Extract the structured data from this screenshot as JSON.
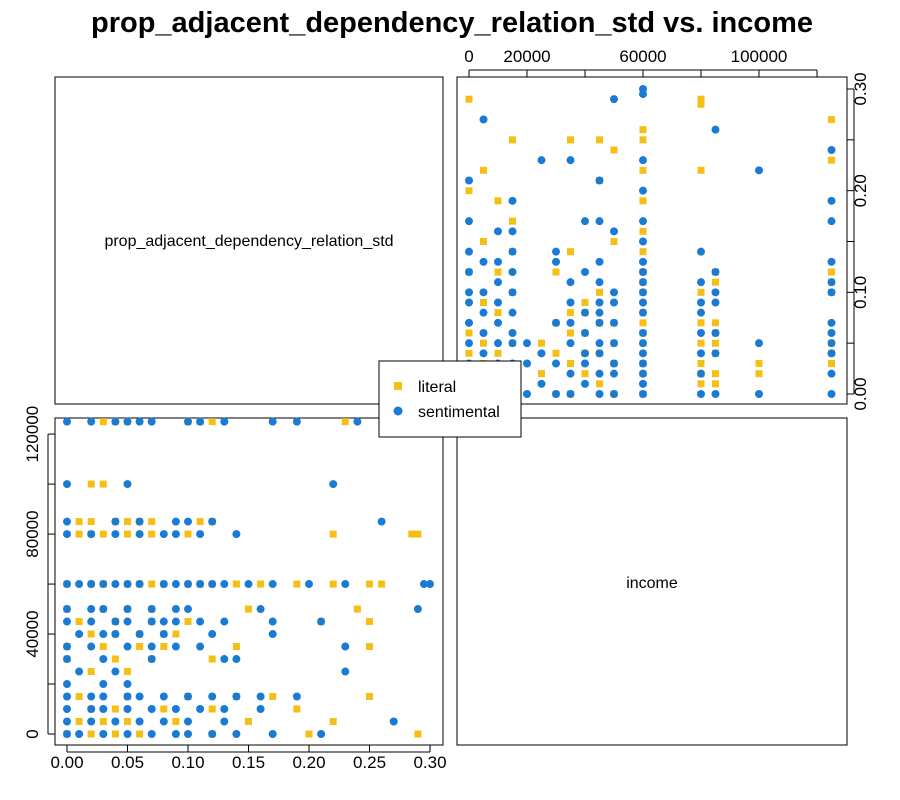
{
  "title": "prop_adjacent_dependency_relation_std vs. income",
  "diagonal_labels": {
    "prop": "prop_adjacent_dependency_relation_std",
    "income": "income"
  },
  "legend": [
    {
      "label": "literal",
      "color": "#F5BF16",
      "shape": "square"
    },
    {
      "label": "sentimental",
      "color": "#1A7BD4",
      "shape": "circle"
    }
  ],
  "chart_data": {
    "type": "scatter",
    "title": "prop_adjacent_dependency_relation_std vs. income",
    "variables": [
      "prop_adjacent_dependency_relation_std",
      "income"
    ],
    "layout": "scatterplot matrix (2x2)",
    "prop_axis": {
      "range": [
        0,
        0.3
      ],
      "ticks": [
        "0.00",
        "0.05",
        "0.10",
        "0.15",
        "0.20",
        "0.25",
        "0.30"
      ],
      "tick_values": [
        0,
        0.05,
        0.1,
        0.15,
        0.2,
        0.25,
        0.3
      ]
    },
    "income_axis_left": {
      "range": [
        0,
        125000
      ],
      "ticks": [
        "0",
        "40000",
        "80000",
        "120000"
      ],
      "tick_values": [
        0,
        40000,
        80000,
        120000
      ],
      "minor_ticks": [
        20000,
        60000,
        100000
      ]
    },
    "income_axis_top": {
      "range": [
        0,
        125000
      ],
      "ticks": [
        "0",
        "20000",
        "60000",
        "100000"
      ],
      "tick_values": [
        0,
        20000,
        60000,
        100000
      ],
      "minor_ticks": [
        40000,
        80000,
        120000
      ]
    },
    "series": [
      {
        "name": "literal",
        "points": [
          [
            0.0,
            0
          ],
          [
            0.02,
            0
          ],
          [
            0.04,
            0
          ],
          [
            0.06,
            0
          ],
          [
            0.12,
            0
          ],
          [
            0.2,
            0
          ],
          [
            0.29,
            0
          ],
          [
            0.01,
            5000
          ],
          [
            0.03,
            5000
          ],
          [
            0.05,
            5000
          ],
          [
            0.09,
            5000
          ],
          [
            0.15,
            5000
          ],
          [
            0.22,
            5000
          ],
          [
            0.02,
            10000
          ],
          [
            0.04,
            10000
          ],
          [
            0.08,
            10000
          ],
          [
            0.12,
            10000
          ],
          [
            0.19,
            10000
          ],
          [
            0.01,
            15000
          ],
          [
            0.05,
            15000
          ],
          [
            0.1,
            15000
          ],
          [
            0.14,
            15000
          ],
          [
            0.17,
            15000
          ],
          [
            0.25,
            15000
          ],
          [
            0.02,
            25000
          ],
          [
            0.05,
            25000
          ],
          [
            0.0,
            30000
          ],
          [
            0.04,
            30000
          ],
          [
            0.07,
            30000
          ],
          [
            0.12,
            30000
          ],
          [
            0.0,
            35000
          ],
          [
            0.03,
            35000
          ],
          [
            0.06,
            35000
          ],
          [
            0.08,
            35000
          ],
          [
            0.14,
            35000
          ],
          [
            0.25,
            35000
          ],
          [
            0.02,
            40000
          ],
          [
            0.04,
            40000
          ],
          [
            0.06,
            40000
          ],
          [
            0.08,
            40000
          ],
          [
            0.09,
            40000
          ],
          [
            0.01,
            45000
          ],
          [
            0.04,
            45000
          ],
          [
            0.07,
            45000
          ],
          [
            0.1,
            45000
          ],
          [
            0.21,
            45000
          ],
          [
            0.25,
            45000
          ],
          [
            0.0,
            50000
          ],
          [
            0.03,
            50000
          ],
          [
            0.05,
            50000
          ],
          [
            0.07,
            50000
          ],
          [
            0.15,
            50000
          ],
          [
            0.24,
            50000
          ],
          [
            0.0,
            60000
          ],
          [
            0.02,
            60000
          ],
          [
            0.03,
            60000
          ],
          [
            0.05,
            60000
          ],
          [
            0.06,
            60000
          ],
          [
            0.07,
            60000
          ],
          [
            0.08,
            60000
          ],
          [
            0.1,
            60000
          ],
          [
            0.11,
            60000
          ],
          [
            0.12,
            60000
          ],
          [
            0.14,
            60000
          ],
          [
            0.16,
            60000
          ],
          [
            0.19,
            60000
          ],
          [
            0.22,
            60000
          ],
          [
            0.25,
            60000
          ],
          [
            0.26,
            60000
          ],
          [
            0.01,
            80000
          ],
          [
            0.02,
            80000
          ],
          [
            0.03,
            80000
          ],
          [
            0.05,
            80000
          ],
          [
            0.07,
            80000
          ],
          [
            0.1,
            80000
          ],
          [
            0.22,
            80000
          ],
          [
            0.285,
            80000
          ],
          [
            0.29,
            80000
          ],
          [
            0.01,
            85000
          ],
          [
            0.02,
            85000
          ],
          [
            0.04,
            85000
          ],
          [
            0.05,
            85000
          ],
          [
            0.06,
            85000
          ],
          [
            0.07,
            85000
          ],
          [
            0.11,
            85000
          ],
          [
            0.12,
            85000
          ],
          [
            0.02,
            100000
          ],
          [
            0.03,
            100000
          ],
          [
            0.03,
            125000
          ],
          [
            0.04,
            125000
          ],
          [
            0.05,
            125000
          ],
          [
            0.1,
            125000
          ],
          [
            0.11,
            125000
          ],
          [
            0.12,
            125000
          ],
          [
            0.23,
            125000
          ],
          [
            0.27,
            125000
          ]
        ]
      },
      {
        "name": "sentimental",
        "points": [
          [
            0.0,
            0
          ],
          [
            0.01,
            0
          ],
          [
            0.03,
            0
          ],
          [
            0.05,
            0
          ],
          [
            0.07,
            0
          ],
          [
            0.09,
            0
          ],
          [
            0.1,
            0
          ],
          [
            0.12,
            0
          ],
          [
            0.14,
            0
          ],
          [
            0.17,
            0
          ],
          [
            0.21,
            0
          ],
          [
            0.0,
            5000
          ],
          [
            0.02,
            5000
          ],
          [
            0.04,
            5000
          ],
          [
            0.06,
            5000
          ],
          [
            0.08,
            5000
          ],
          [
            0.1,
            5000
          ],
          [
            0.13,
            5000
          ],
          [
            0.27,
            5000
          ],
          [
            0.0,
            10000
          ],
          [
            0.02,
            10000
          ],
          [
            0.03,
            10000
          ],
          [
            0.05,
            10000
          ],
          [
            0.07,
            10000
          ],
          [
            0.09,
            10000
          ],
          [
            0.11,
            10000
          ],
          [
            0.13,
            10000
          ],
          [
            0.16,
            10000
          ],
          [
            0.0,
            15000
          ],
          [
            0.02,
            15000
          ],
          [
            0.03,
            15000
          ],
          [
            0.05,
            15000
          ],
          [
            0.06,
            15000
          ],
          [
            0.08,
            15000
          ],
          [
            0.1,
            15000
          ],
          [
            0.12,
            15000
          ],
          [
            0.14,
            15000
          ],
          [
            0.16,
            15000
          ],
          [
            0.19,
            15000
          ],
          [
            0.0,
            20000
          ],
          [
            0.03,
            20000
          ],
          [
            0.05,
            20000
          ],
          [
            0.01,
            25000
          ],
          [
            0.04,
            25000
          ],
          [
            0.23,
            25000
          ],
          [
            0.0,
            30000
          ],
          [
            0.03,
            30000
          ],
          [
            0.07,
            30000
          ],
          [
            0.13,
            30000
          ],
          [
            0.14,
            30000
          ],
          [
            0.0,
            35000
          ],
          [
            0.02,
            35000
          ],
          [
            0.05,
            35000
          ],
          [
            0.07,
            35000
          ],
          [
            0.09,
            35000
          ],
          [
            0.11,
            35000
          ],
          [
            0.23,
            35000
          ],
          [
            0.01,
            40000
          ],
          [
            0.03,
            40000
          ],
          [
            0.04,
            40000
          ],
          [
            0.06,
            40000
          ],
          [
            0.08,
            40000
          ],
          [
            0.12,
            40000
          ],
          [
            0.17,
            40000
          ],
          [
            0.0,
            45000
          ],
          [
            0.02,
            45000
          ],
          [
            0.04,
            45000
          ],
          [
            0.05,
            45000
          ],
          [
            0.07,
            45000
          ],
          [
            0.08,
            45000
          ],
          [
            0.09,
            45000
          ],
          [
            0.11,
            45000
          ],
          [
            0.13,
            45000
          ],
          [
            0.17,
            45000
          ],
          [
            0.21,
            45000
          ],
          [
            0.0,
            50000
          ],
          [
            0.02,
            50000
          ],
          [
            0.03,
            50000
          ],
          [
            0.05,
            50000
          ],
          [
            0.07,
            50000
          ],
          [
            0.09,
            50000
          ],
          [
            0.1,
            50000
          ],
          [
            0.16,
            50000
          ],
          [
            0.29,
            50000
          ],
          [
            0.0,
            60000
          ],
          [
            0.01,
            60000
          ],
          [
            0.02,
            60000
          ],
          [
            0.03,
            60000
          ],
          [
            0.04,
            60000
          ],
          [
            0.05,
            60000
          ],
          [
            0.06,
            60000
          ],
          [
            0.08,
            60000
          ],
          [
            0.09,
            60000
          ],
          [
            0.1,
            60000
          ],
          [
            0.11,
            60000
          ],
          [
            0.12,
            60000
          ],
          [
            0.13,
            60000
          ],
          [
            0.15,
            60000
          ],
          [
            0.17,
            60000
          ],
          [
            0.2,
            60000
          ],
          [
            0.23,
            60000
          ],
          [
            0.295,
            60000
          ],
          [
            0.3,
            60000
          ],
          [
            0.0,
            80000
          ],
          [
            0.02,
            80000
          ],
          [
            0.04,
            80000
          ],
          [
            0.06,
            80000
          ],
          [
            0.08,
            80000
          ],
          [
            0.09,
            80000
          ],
          [
            0.11,
            80000
          ],
          [
            0.14,
            80000
          ],
          [
            0.0,
            85000
          ],
          [
            0.04,
            85000
          ],
          [
            0.06,
            85000
          ],
          [
            0.09,
            85000
          ],
          [
            0.1,
            85000
          ],
          [
            0.12,
            85000
          ],
          [
            0.26,
            85000
          ],
          [
            0.0,
            100000
          ],
          [
            0.05,
            100000
          ],
          [
            0.22,
            100000
          ],
          [
            0.0,
            125000
          ],
          [
            0.02,
            125000
          ],
          [
            0.04,
            125000
          ],
          [
            0.05,
            125000
          ],
          [
            0.06,
            125000
          ],
          [
            0.07,
            125000
          ],
          [
            0.1,
            125000
          ],
          [
            0.11,
            125000
          ],
          [
            0.13,
            125000
          ],
          [
            0.17,
            125000
          ],
          [
            0.19,
            125000
          ],
          [
            0.24,
            125000
          ]
        ]
      }
    ]
  }
}
